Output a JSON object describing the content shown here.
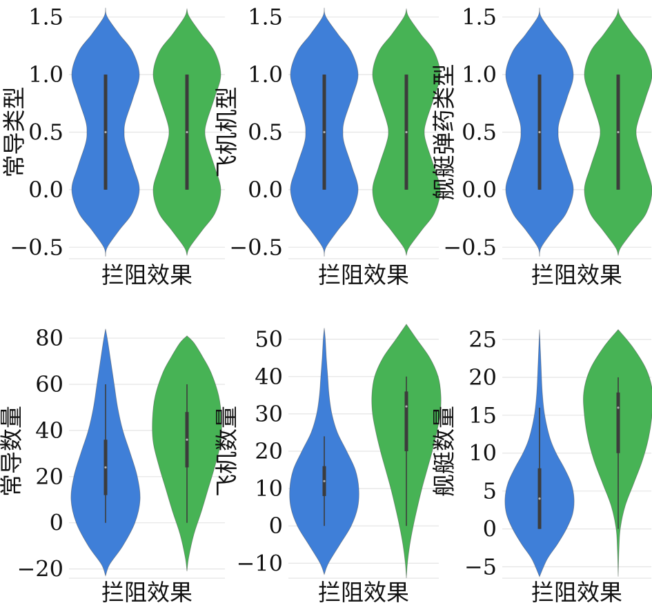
{
  "colors": {
    "blue": "#3f7fd8",
    "green": "#47b355",
    "grid": "#e4e4e4",
    "box": "#3c3c3c"
  },
  "chart_data": [
    {
      "type": "violin",
      "xlabel": "拦阻效果",
      "ylabel": "常导类型",
      "ylim": [
        -0.6,
        1.6
      ],
      "ticks": [
        {
          "v": -0.5,
          "label": "−0.5"
        },
        {
          "v": 0,
          "label": "0.0"
        },
        {
          "v": 0.5,
          "label": "0.5"
        },
        {
          "v": 1,
          "label": "1.0"
        },
        {
          "v": 1.5,
          "label": "1.5"
        }
      ],
      "series": [
        {
          "color": "blue",
          "y": [
            -0.58,
            -0.5,
            -0.35,
            -0.2,
            0.0,
            0.2,
            0.4,
            0.5,
            0.6,
            0.8,
            1.0,
            1.2,
            1.35,
            1.5,
            1.58
          ],
          "w": [
            0,
            0.05,
            0.4,
            0.78,
            0.98,
            0.8,
            0.58,
            0.54,
            0.58,
            0.8,
            0.98,
            0.78,
            0.4,
            0.05,
            0
          ],
          "whisker": [
            0,
            1
          ],
          "box": [
            0,
            1
          ],
          "median": 0.5
        },
        {
          "color": "green",
          "y": [
            -0.57,
            -0.5,
            -0.35,
            -0.2,
            0.0,
            0.2,
            0.4,
            0.5,
            0.6,
            0.8,
            1.0,
            1.2,
            1.35,
            1.5,
            1.57
          ],
          "w": [
            0,
            0.08,
            0.45,
            0.82,
            0.98,
            0.8,
            0.58,
            0.52,
            0.58,
            0.8,
            0.98,
            0.8,
            0.42,
            0.07,
            0
          ],
          "whisker": [
            0,
            1
          ],
          "box": [
            0,
            1
          ],
          "median": 0.5
        }
      ]
    },
    {
      "type": "violin",
      "xlabel": "拦阻效果",
      "ylabel": "飞机机型",
      "ylim": [
        -0.6,
        1.6
      ],
      "ticks": [
        {
          "v": -0.5,
          "label": "−0.5"
        },
        {
          "v": 0,
          "label": "0.0"
        },
        {
          "v": 0.5,
          "label": "0.5"
        },
        {
          "v": 1,
          "label": "1.0"
        },
        {
          "v": 1.5,
          "label": "1.5"
        }
      ],
      "series": [
        {
          "color": "blue",
          "y": [
            -0.58,
            -0.5,
            -0.35,
            -0.2,
            0.0,
            0.2,
            0.4,
            0.5,
            0.6,
            0.8,
            1.0,
            1.2,
            1.35,
            1.5,
            1.58
          ],
          "w": [
            0,
            0.05,
            0.4,
            0.78,
            0.98,
            0.8,
            0.58,
            0.54,
            0.58,
            0.8,
            0.98,
            0.78,
            0.4,
            0.05,
            0
          ],
          "whisker": [
            0,
            1
          ],
          "box": [
            0,
            1
          ],
          "median": 0.5
        },
        {
          "color": "green",
          "y": [
            -0.57,
            -0.5,
            -0.35,
            -0.2,
            0.0,
            0.2,
            0.4,
            0.5,
            0.6,
            0.8,
            1.0,
            1.2,
            1.35,
            1.5,
            1.57
          ],
          "w": [
            0,
            0.08,
            0.45,
            0.82,
            0.98,
            0.8,
            0.58,
            0.52,
            0.58,
            0.8,
            0.98,
            0.8,
            0.42,
            0.07,
            0
          ],
          "whisker": [
            0,
            1
          ],
          "box": [
            0,
            1
          ],
          "median": 0.5
        }
      ]
    },
    {
      "type": "violin",
      "xlabel": "拦阻效果",
      "ylabel": "舰艇弹药类型",
      "ylim": [
        -0.6,
        1.6
      ],
      "ticks": [
        {
          "v": -0.5,
          "label": "−0.5"
        },
        {
          "v": 0,
          "label": "0.0"
        },
        {
          "v": 0.5,
          "label": "0.5"
        },
        {
          "v": 1,
          "label": "1.0"
        },
        {
          "v": 1.5,
          "label": "1.5"
        }
      ],
      "series": [
        {
          "color": "blue",
          "y": [
            -0.58,
            -0.5,
            -0.35,
            -0.2,
            0.0,
            0.2,
            0.4,
            0.5,
            0.6,
            0.8,
            1.0,
            1.2,
            1.35,
            1.5,
            1.58
          ],
          "w": [
            0,
            0.05,
            0.4,
            0.78,
            0.98,
            0.8,
            0.58,
            0.54,
            0.58,
            0.8,
            0.98,
            0.78,
            0.4,
            0.05,
            0
          ],
          "whisker": [
            0,
            1
          ],
          "box": [
            0,
            1
          ],
          "median": 0.5
        },
        {
          "color": "green",
          "y": [
            -0.57,
            -0.5,
            -0.35,
            -0.2,
            0.0,
            0.2,
            0.4,
            0.5,
            0.6,
            0.8,
            1.0,
            1.2,
            1.35,
            1.5,
            1.57
          ],
          "w": [
            0,
            0.08,
            0.45,
            0.82,
            0.98,
            0.8,
            0.58,
            0.52,
            0.58,
            0.8,
            0.98,
            0.8,
            0.42,
            0.07,
            0
          ],
          "whisker": [
            0,
            1
          ],
          "box": [
            0,
            1
          ],
          "median": 0.5
        }
      ]
    },
    {
      "type": "violin",
      "xlabel": "拦阻效果",
      "ylabel": "常导数量",
      "ylim": [
        -24,
        86
      ],
      "ticks": [
        {
          "v": -20,
          "label": "−20"
        },
        {
          "v": 0,
          "label": "0"
        },
        {
          "v": 20,
          "label": "20"
        },
        {
          "v": 40,
          "label": "40"
        },
        {
          "v": 60,
          "label": "60"
        },
        {
          "v": 80,
          "label": "80"
        }
      ],
      "series": [
        {
          "color": "blue",
          "y": [
            -23,
            -18,
            -10,
            0,
            10,
            20,
            30,
            40,
            50,
            60,
            70,
            78,
            84
          ],
          "w": [
            0,
            0.12,
            0.5,
            0.85,
            1.0,
            0.92,
            0.72,
            0.5,
            0.35,
            0.25,
            0.15,
            0.07,
            0
          ],
          "whisker": [
            0,
            60
          ],
          "box": [
            12,
            36
          ],
          "median": 24
        },
        {
          "color": "green",
          "y": [
            -21,
            -15,
            -5,
            5,
            15,
            25,
            35,
            45,
            55,
            65,
            72,
            78,
            81
          ],
          "w": [
            0,
            0.05,
            0.2,
            0.42,
            0.62,
            0.82,
            0.98,
            1.0,
            0.92,
            0.7,
            0.45,
            0.2,
            0
          ],
          "whisker": [
            0,
            60
          ],
          "box": [
            24,
            48
          ],
          "median": 36
        }
      ]
    },
    {
      "type": "violin",
      "xlabel": "拦阻效果",
      "ylabel": "飞机数量",
      "ylim": [
        -14,
        54
      ],
      "ticks": [
        {
          "v": -10,
          "label": "−10"
        },
        {
          "v": 0,
          "label": "0"
        },
        {
          "v": 10,
          "label": "10"
        },
        {
          "v": 20,
          "label": "20"
        },
        {
          "v": 30,
          "label": "30"
        },
        {
          "v": 40,
          "label": "40"
        },
        {
          "v": 50,
          "label": "50"
        }
      ],
      "series": [
        {
          "color": "blue",
          "y": [
            -13,
            -10,
            -5,
            0,
            5,
            10,
            15,
            20,
            25,
            30,
            35,
            40,
            45,
            50,
            53
          ],
          "w": [
            0,
            0.12,
            0.45,
            0.78,
            0.97,
            1.0,
            0.9,
            0.65,
            0.38,
            0.22,
            0.14,
            0.1,
            0.06,
            0.03,
            0
          ],
          "whisker": [
            0,
            24
          ],
          "box": [
            8,
            16
          ],
          "median": 12
        },
        {
          "color": "green",
          "y": [
            -14,
            -10,
            -5,
            0,
            5,
            10,
            15,
            20,
            25,
            30,
            35,
            40,
            45,
            50,
            54
          ],
          "w": [
            0,
            0.03,
            0.1,
            0.2,
            0.32,
            0.45,
            0.6,
            0.75,
            0.88,
            0.98,
            1.0,
            0.92,
            0.68,
            0.3,
            0
          ],
          "whisker": [
            0,
            40
          ],
          "box": [
            20,
            36
          ],
          "median": 32
        }
      ]
    },
    {
      "type": "violin",
      "xlabel": "拦阻效果",
      "ylabel": "舰艇数量",
      "ylim": [
        -6.5,
        27
      ],
      "ticks": [
        {
          "v": -5,
          "label": "−5"
        },
        {
          "v": 0,
          "label": "0"
        },
        {
          "v": 5,
          "label": "5"
        },
        {
          "v": 10,
          "label": "10"
        },
        {
          "v": 15,
          "label": "15"
        },
        {
          "v": 20,
          "label": "20"
        },
        {
          "v": 25,
          "label": "25"
        }
      ],
      "series": [
        {
          "color": "blue",
          "y": [
            -6.3,
            -4,
            -2,
            0,
            2,
            4,
            6,
            8,
            10,
            12,
            15,
            18,
            22,
            26.3
          ],
          "w": [
            0,
            0.22,
            0.52,
            0.78,
            0.96,
            1.0,
            0.92,
            0.72,
            0.48,
            0.3,
            0.15,
            0.08,
            0.04,
            0
          ],
          "whisker": [
            0,
            16
          ],
          "box": [
            0,
            8
          ],
          "median": 4
        },
        {
          "color": "green",
          "y": [
            -6.3,
            -3,
            0,
            3,
            6,
            9,
            12,
            15,
            18,
            21,
            24,
            26.3
          ],
          "w": [
            0,
            0.02,
            0.06,
            0.2,
            0.45,
            0.7,
            0.88,
            0.98,
            1.0,
            0.82,
            0.42,
            0
          ],
          "whisker": [
            0,
            20
          ],
          "box": [
            10,
            18
          ],
          "median": 16
        }
      ]
    }
  ]
}
